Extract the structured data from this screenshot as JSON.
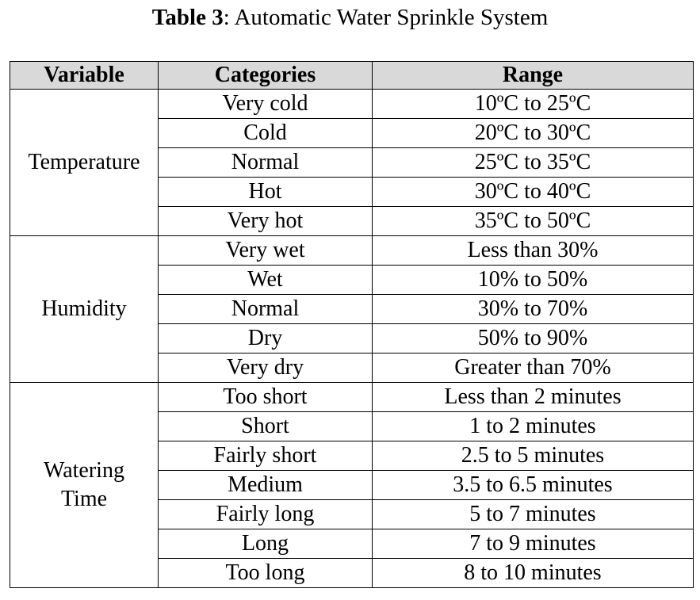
{
  "caption": {
    "label": "Table 3",
    "text": ": Automatic Water Sprinkle System"
  },
  "table": {
    "headers": [
      "Variable",
      "Categories",
      "Range"
    ],
    "groups": [
      {
        "variable": "Temperature",
        "rows": [
          [
            "Very cold",
            "10ºC to 25ºC"
          ],
          [
            "Cold",
            "20ºC to 30ºC"
          ],
          [
            "Normal",
            "25ºC to 35ºC"
          ],
          [
            "Hot",
            "30ºC to 40ºC"
          ],
          [
            "Very hot",
            "35ºC to 50ºC"
          ]
        ]
      },
      {
        "variable": "Humidity",
        "rows": [
          [
            "Very wet",
            "Less than 30%"
          ],
          [
            "Wet",
            "10% to 50%"
          ],
          [
            "Normal",
            "30% to 70%"
          ],
          [
            "Dry",
            "50% to 90%"
          ],
          [
            "Very dry",
            "Greater than 70%"
          ]
        ]
      },
      {
        "variable": "Watering Time",
        "rows": [
          [
            "Too short",
            "Less than 2 minutes"
          ],
          [
            "Short",
            "1 to 2 minutes"
          ],
          [
            "Fairly short",
            "2.5 to 5 minutes"
          ],
          [
            "Medium",
            "3.5 to 6.5 minutes"
          ],
          [
            "Fairly long",
            "5 to 7 minutes"
          ],
          [
            "Long",
            "7 to 9 minutes"
          ],
          [
            "Too long",
            "8 to 10 minutes"
          ]
        ]
      }
    ]
  }
}
